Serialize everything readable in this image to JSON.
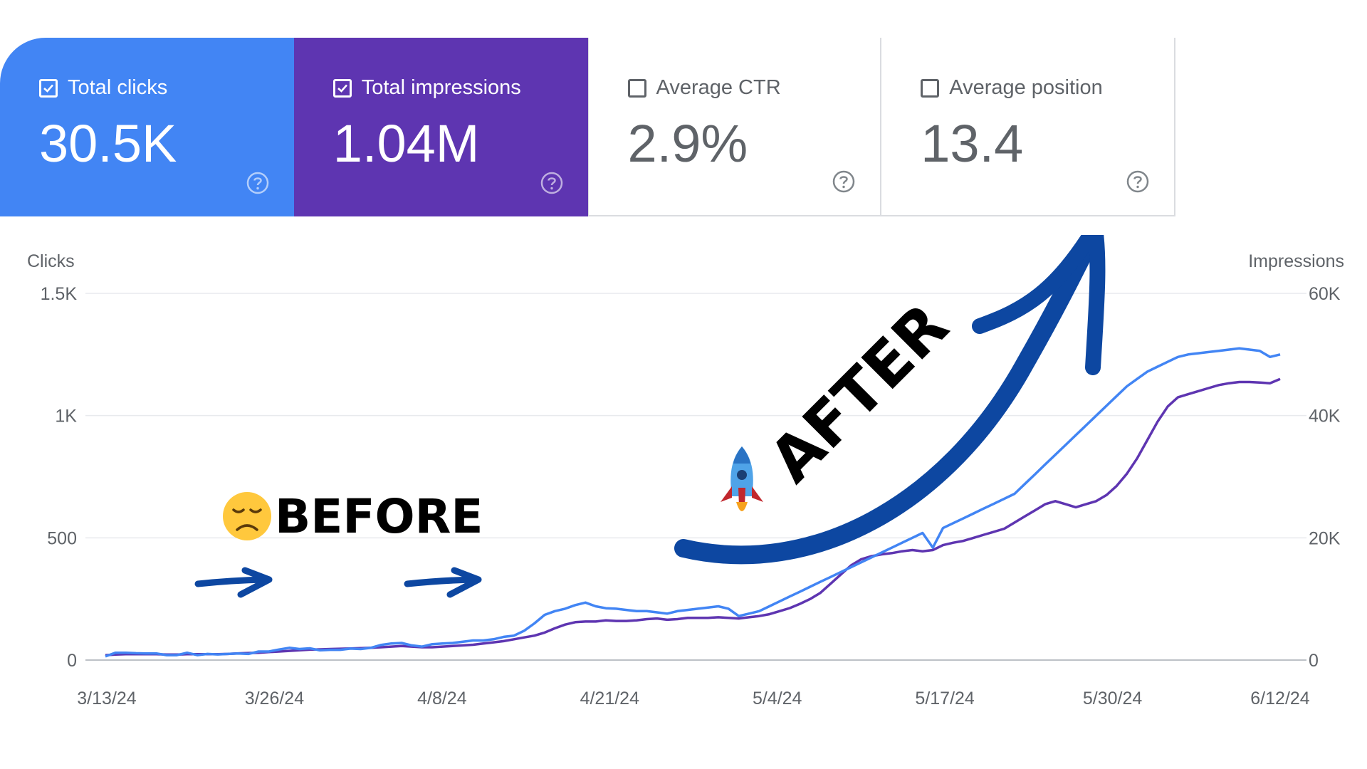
{
  "metrics": {
    "clicks": {
      "label": "Total clicks",
      "value": "30.5K",
      "checked": true,
      "color": "#4285f4"
    },
    "impressions": {
      "label": "Total impressions",
      "value": "1.04M",
      "checked": true,
      "color": "#5e35b1"
    },
    "ctr": {
      "label": "Average CTR",
      "value": "2.9%",
      "checked": false
    },
    "position": {
      "label": "Average position",
      "value": "13.4",
      "checked": false
    }
  },
  "chart_data": {
    "type": "line",
    "left_axis_title": "Clicks",
    "right_axis_title": "Impressions",
    "left_ticks": [
      "0",
      "500",
      "1K",
      "1.5K"
    ],
    "right_ticks": [
      "0",
      "20K",
      "40K",
      "60K"
    ],
    "ylim_left": [
      0,
      1500
    ],
    "ylim_right": [
      0,
      60000
    ],
    "x_tick_labels": [
      "3/13/24",
      "3/26/24",
      "4/8/24",
      "4/21/24",
      "5/4/24",
      "5/17/24",
      "5/30/24",
      "6/12/24"
    ],
    "x_range": [
      "3/13/24",
      "6/12/24"
    ],
    "grid": true,
    "series": [
      {
        "name": "Clicks",
        "axis": "left",
        "color": "#4285f4",
        "values": [
          15,
          30,
          30,
          28,
          27,
          27,
          20,
          20,
          30,
          20,
          25,
          23,
          25,
          27,
          25,
          35,
          35,
          43,
          50,
          45,
          48,
          40,
          42,
          42,
          47,
          45,
          50,
          62,
          68,
          70,
          60,
          55,
          65,
          68,
          70,
          75,
          80,
          80,
          85,
          95,
          100,
          120,
          150,
          185,
          200,
          210,
          225,
          235,
          220,
          212,
          210,
          205,
          200,
          200,
          195,
          190,
          200,
          205,
          210,
          215,
          220,
          210,
          180,
          190,
          200,
          220,
          240,
          260,
          280,
          300,
          320,
          340,
          360,
          380,
          400,
          420,
          440,
          460,
          480,
          500,
          520,
          460,
          540,
          560,
          580,
          600,
          620,
          640,
          660,
          680,
          720,
          760,
          800,
          840,
          880,
          920,
          960,
          1000,
          1040,
          1080,
          1120,
          1150,
          1180,
          1200,
          1220,
          1240,
          1250,
          1255,
          1260,
          1265,
          1270,
          1275,
          1270,
          1265,
          1240,
          1250
        ],
        "display_note": ""
      },
      {
        "name": "Impressions",
        "axis": "right",
        "color": "#5e35b1",
        "values": [
          800,
          900,
          950,
          950,
          950,
          950,
          900,
          900,
          950,
          950,
          950,
          950,
          1000,
          1100,
          1150,
          1200,
          1300,
          1400,
          1500,
          1600,
          1700,
          1750,
          1800,
          1850,
          1900,
          1950,
          2000,
          2100,
          2200,
          2300,
          2200,
          2100,
          2100,
          2200,
          2300,
          2400,
          2500,
          2700,
          2900,
          3100,
          3400,
          3700,
          4000,
          4500,
          5200,
          5800,
          6200,
          6300,
          6300,
          6500,
          6400,
          6400,
          6500,
          6700,
          6800,
          6600,
          6700,
          6900,
          6900,
          6900,
          7000,
          6900,
          6800,
          7000,
          7200,
          7500,
          8000,
          8500,
          9200,
          10000,
          11000,
          12500,
          14000,
          15500,
          16500,
          17000,
          17300,
          17500,
          17800,
          18000,
          17800,
          18000,
          18800,
          19200,
          19500,
          20000,
          20500,
          21000,
          21500,
          22500,
          23500,
          24500,
          25500,
          26000,
          25500,
          25000,
          25500,
          26000,
          27000,
          28500,
          30500,
          33000,
          36000,
          39000,
          41500,
          43000,
          43500,
          44000,
          44500,
          45000,
          45300,
          45500,
          45500,
          45400,
          45300,
          46000
        ],
        "display_note": ""
      }
    ],
    "annotations": {
      "before": "BEFORE",
      "after": "AFTER"
    }
  }
}
